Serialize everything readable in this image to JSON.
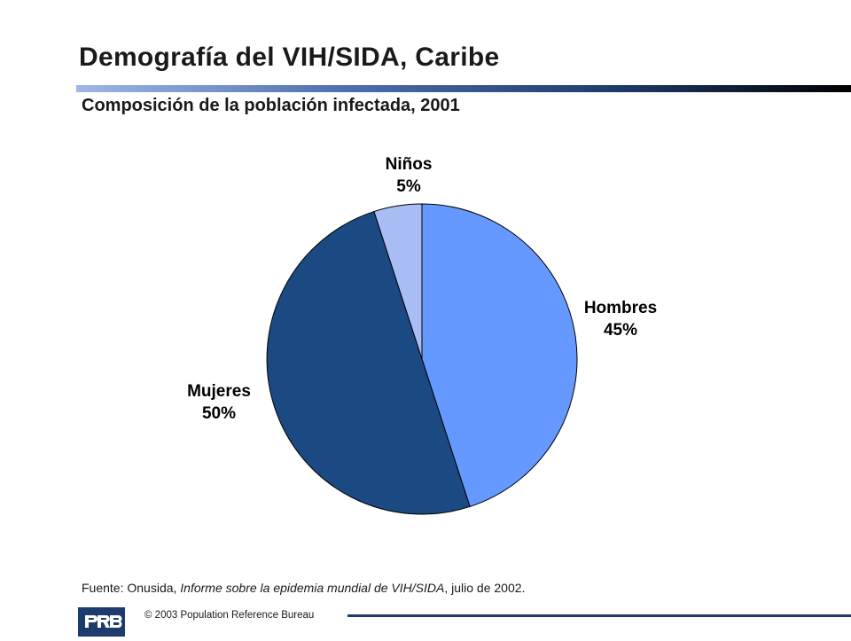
{
  "header": {
    "title_main": "Demografía del VIH/SIDA,",
    "title_region": "Caribe",
    "subtitle": "Composición de la población infectada, 2001"
  },
  "chart_data": {
    "type": "pie",
    "title": "",
    "slices": [
      {
        "label": "Hombres",
        "value": 45,
        "display": "45%",
        "color": "#6699ff"
      },
      {
        "label": "Mujeres",
        "value": 50,
        "display": "50%",
        "color": "#1b4a83"
      },
      {
        "label": "Niños",
        "value": 5,
        "display": "5%",
        "color": "#a9bdf5"
      }
    ],
    "start_angle_deg": 0,
    "direction": "clockwise",
    "slice_border_color": "#000000"
  },
  "source": {
    "prefix": "Fuente: Onusida, ",
    "title_italic": "Informe sobre la epidemia mundial de VIH/SIDA",
    "suffix": ", julio de 2002."
  },
  "footer": {
    "logo_text": "PRB",
    "copyright": "© 2003  Population Reference Bureau"
  },
  "colors": {
    "accent_dark": "#1d3b6c",
    "rule_start": "#9fb7e8",
    "rule_end": "#000000"
  }
}
